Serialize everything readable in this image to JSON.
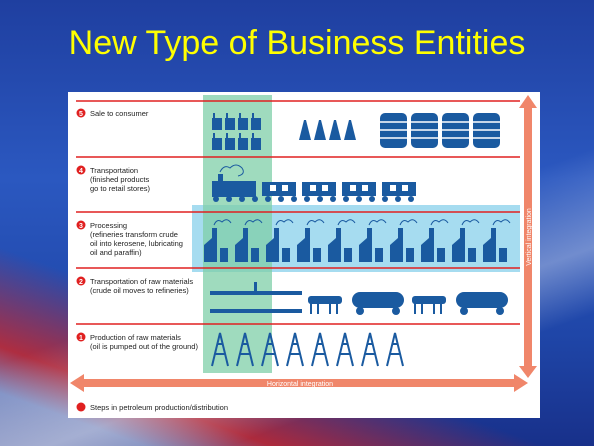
{
  "title": "New Type of Business Entities",
  "steps": [
    {
      "number": "5",
      "lines": [
        "Sale to consumer"
      ]
    },
    {
      "number": "4",
      "lines": [
        "Transportation",
        "(finished products",
        "go to retail stores)"
      ]
    },
    {
      "number": "3",
      "lines": [
        "Processing",
        "(refineries transform crude",
        "oil into kerosene, lubricating",
        "oil and paraffin)"
      ]
    },
    {
      "number": "2",
      "lines": [
        "Transportation of raw materials",
        "(crude oil moves to refineries)"
      ]
    },
    {
      "number": "1",
      "lines": [
        "Production of raw materials",
        "(oil is pumped out of the ground)"
      ]
    }
  ],
  "axes": {
    "horizontal": "Horizontal integration",
    "vertical": "Vertical integration"
  },
  "legend": "Steps in petroleum production/distribution"
}
